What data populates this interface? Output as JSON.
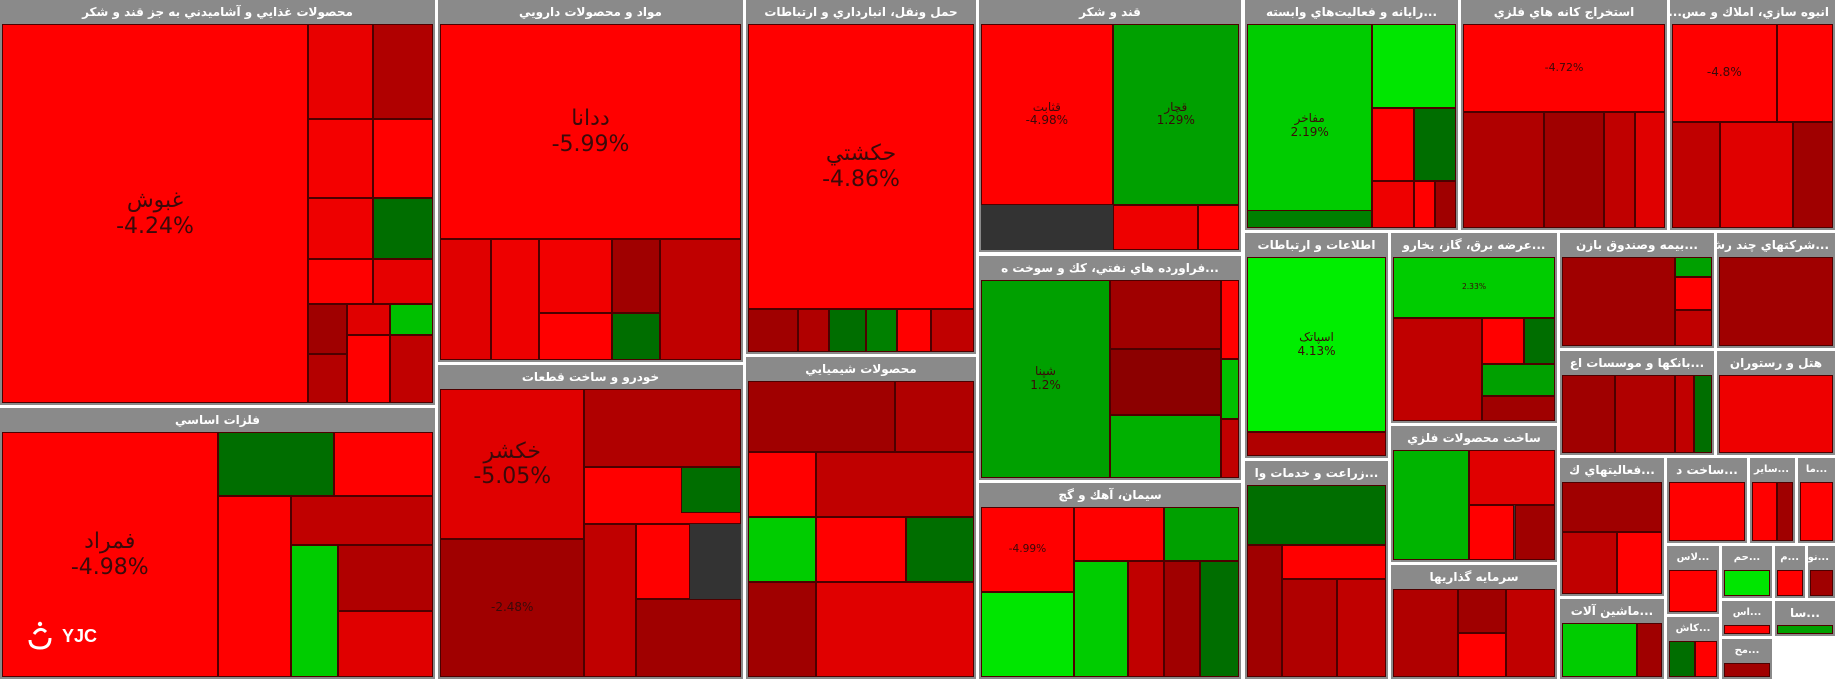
{
  "colors": {
    "strong_red": "#ff0000",
    "red": "#e00000",
    "mid_red": "#c30000",
    "dark_red": "#a00000",
    "deep_red": "#7f0000",
    "strong_green": "#00e600",
    "green": "#00b400",
    "dark_green": "#006e00",
    "header_gray": "#8a8a8a"
  },
  "logo": {
    "text": "YJC",
    "icon": "yjc-logo-mark"
  },
  "sectors": [
    {
      "id": "food",
      "title": "محصولات غذايي و آشاميدني به جز قند و شکر",
      "tiles": [
        {
          "name": "غبوش",
          "pct": "-4.24%",
          "color": "#ff0000",
          "big": true
        },
        {
          "name": "",
          "pct": "",
          "color": "#e80000"
        },
        {
          "name": "",
          "pct": "",
          "color": "#b00000"
        },
        {
          "name": "",
          "pct": "",
          "color": "#f40000"
        },
        {
          "name": "",
          "pct": "",
          "color": "#ff0000"
        },
        {
          "name": "",
          "pct": "",
          "color": "#ee0000"
        },
        {
          "name": "",
          "pct": "",
          "color": "#006e00"
        },
        {
          "name": "",
          "pct": "",
          "color": "#ff0000"
        },
        {
          "name": "",
          "pct": "",
          "color": "#e60000"
        },
        {
          "name": "",
          "pct": "",
          "color": "#a00000"
        },
        {
          "name": "",
          "pct": "",
          "color": "#e00000"
        },
        {
          "name": "",
          "pct": "",
          "color": "#00c000"
        },
        {
          "name": "",
          "pct": "",
          "color": "#b40000"
        },
        {
          "name": "",
          "pct": "",
          "color": "#ff0000"
        },
        {
          "name": "",
          "pct": "",
          "color": "#c00000"
        }
      ]
    },
    {
      "id": "pharma",
      "title": "مواد و محصولات دارويي",
      "tiles": [
        {
          "name": "ددانا",
          "pct": "-5.99%",
          "color": "#ff0000",
          "big": true
        },
        {
          "name": "",
          "pct": "",
          "color": "#e00000"
        },
        {
          "name": "",
          "pct": "",
          "color": "#ee0000"
        },
        {
          "name": "",
          "pct": "",
          "color": "#f20000"
        },
        {
          "name": "",
          "pct": "",
          "color": "#a00000"
        },
        {
          "name": "",
          "pct": "",
          "color": "#006e00"
        },
        {
          "name": "",
          "pct": "",
          "color": "#c00000"
        },
        {
          "name": "",
          "pct": "",
          "color": "#ff0000"
        }
      ]
    },
    {
      "id": "transport",
      "title": "حمل ونقل، انبارداري و ارتباطات",
      "tiles": [
        {
          "name": "حکشتي",
          "pct": "-4.86%",
          "color": "#ff0000",
          "big": true
        },
        {
          "name": "",
          "pct": "",
          "color": "#a00000"
        },
        {
          "name": "",
          "pct": "",
          "color": "#b00000"
        },
        {
          "name": "",
          "pct": "",
          "color": "#006e00"
        },
        {
          "name": "",
          "pct": "",
          "color": "#008000"
        },
        {
          "name": "",
          "pct": "",
          "color": "#ff0000"
        },
        {
          "name": "",
          "pct": "",
          "color": "#c00000"
        }
      ]
    },
    {
      "id": "sugar",
      "title": "قند و شکر",
      "tiles": [
        {
          "name": "قثابت",
          "pct": "-4.98%",
          "color": "#ff0000"
        },
        {
          "name": "قچار",
          "pct": "1.29%",
          "color": "#00a000"
        },
        {
          "name": "",
          "pct": "",
          "color": "#ee0000"
        },
        {
          "name": "",
          "pct": "",
          "color": "#ff0000"
        }
      ]
    },
    {
      "id": "computer",
      "title": "...رايانه و فعاليت‌هاي وابسته",
      "tiles": [
        {
          "name": "مفاخر",
          "pct": "2.19%",
          "color": "#00cc00"
        },
        {
          "name": "",
          "pct": "",
          "color": "#00e600"
        },
        {
          "name": "",
          "pct": "",
          "color": "#ff0000"
        },
        {
          "name": "",
          "pct": "",
          "color": "#006e00"
        },
        {
          "name": "",
          "pct": "",
          "color": "#ee0000"
        },
        {
          "name": "",
          "pct": "",
          "color": "#ff0000"
        },
        {
          "name": "",
          "pct": "",
          "color": "#a00000"
        },
        {
          "name": "",
          "pct": "",
          "color": "#008000"
        }
      ]
    },
    {
      "id": "metal-ore",
      "title": "استخراج کانه هاي فلزي",
      "tiles": [
        {
          "name": "",
          "pct": "-4.72%",
          "color": "#ff0000"
        },
        {
          "name": "",
          "pct": "",
          "color": "#b00000"
        },
        {
          "name": "",
          "pct": "",
          "color": "#a00000"
        },
        {
          "name": "",
          "pct": "",
          "color": "#c00000"
        },
        {
          "name": "",
          "pct": "",
          "color": "#e00000"
        }
      ]
    },
    {
      "id": "housing",
      "title": "انبوه سازي، املاك و مس...",
      "tiles": [
        {
          "name": "",
          "pct": "-4.8%",
          "color": "#ff0000"
        },
        {
          "name": "",
          "pct": "",
          "color": "#ff0000"
        },
        {
          "name": "",
          "pct": "",
          "color": "#c00000"
        },
        {
          "name": "",
          "pct": "",
          "color": "#e00000"
        },
        {
          "name": "",
          "pct": "",
          "color": "#a00000"
        }
      ]
    },
    {
      "id": "petroleum",
      "title": "...فراورده هاي نفتي، کك و سوخت ه",
      "tiles": [
        {
          "name": "شپنا",
          "pct": "1.2%",
          "color": "#00a000"
        },
        {
          "name": "",
          "pct": "",
          "color": "#a00000"
        },
        {
          "name": "",
          "pct": "",
          "color": "#8c0000"
        },
        {
          "name": "",
          "pct": "",
          "color": "#00b000"
        },
        {
          "name": "",
          "pct": "",
          "color": "#ff0000"
        },
        {
          "name": "",
          "pct": "",
          "color": "#00c000"
        },
        {
          "name": "",
          "pct": "",
          "color": "#c00000"
        }
      ]
    },
    {
      "id": "ict",
      "title": "اطلاعات و ارتباطات",
      "tiles": [
        {
          "name": "اسپاتک",
          "pct": "4.13%",
          "color": "#00ee00"
        },
        {
          "name": "",
          "pct": "",
          "color": "#b00000"
        }
      ]
    },
    {
      "id": "power",
      "title": "...عرضه برق، گاز، بخارو",
      "tiles": [
        {
          "name": "",
          "pct": "2.33%",
          "color": "#00cc00"
        },
        {
          "name": "",
          "pct": "",
          "color": "#c00000"
        },
        {
          "name": "",
          "pct": "",
          "color": "#ff0000"
        },
        {
          "name": "",
          "pct": "",
          "color": "#006e00"
        },
        {
          "name": "",
          "pct": "",
          "color": "#00a000"
        },
        {
          "name": "",
          "pct": "",
          "color": "#a00000"
        }
      ]
    },
    {
      "id": "insurance",
      "title": "...بيمه وصندوق بازن",
      "tiles": [
        {
          "name": "",
          "pct": "",
          "color": "#a00000"
        },
        {
          "name": "",
          "pct": "",
          "color": "#00a000"
        },
        {
          "name": "",
          "pct": "",
          "color": "#ff0000"
        },
        {
          "name": "",
          "pct": "",
          "color": "#c00000"
        }
      ]
    },
    {
      "id": "multi",
      "title": "...شرکتهاي چند رش",
      "tiles": [
        {
          "name": "",
          "pct": "",
          "color": "#a00000"
        }
      ]
    },
    {
      "id": "banks",
      "title": "...بانکها و موسسات اع",
      "tiles": [
        {
          "name": "",
          "pct": "",
          "color": "#a00000"
        },
        {
          "name": "",
          "pct": "",
          "color": "#b00000"
        },
        {
          "name": "",
          "pct": "",
          "color": "#c00000"
        },
        {
          "name": "",
          "pct": "",
          "color": "#006e00"
        }
      ]
    },
    {
      "id": "hotel",
      "title": "هتل و رستوران",
      "tiles": [
        {
          "name": "",
          "pct": "",
          "color": "#ee0000"
        }
      ]
    },
    {
      "id": "metals",
      "title": "فلزات اساسي",
      "tiles": [
        {
          "name": "فمراد",
          "pct": "-4.98%",
          "color": "#ff0000",
          "big": true
        },
        {
          "name": "",
          "pct": "",
          "color": "#006e00"
        },
        {
          "name": "",
          "pct": "",
          "color": "#ff0000"
        },
        {
          "name": "",
          "pct": "",
          "color": "#a00000"
        },
        {
          "name": "",
          "pct": "",
          "color": "#c00000"
        },
        {
          "name": "",
          "pct": "",
          "color": "#ff0000"
        },
        {
          "name": "",
          "pct": "",
          "color": "#00a000"
        },
        {
          "name": "",
          "pct": "",
          "color": "#00cc00"
        },
        {
          "name": "",
          "pct": "",
          "color": "#b00000"
        },
        {
          "name": "",
          "pct": "",
          "color": "#e00000"
        }
      ]
    },
    {
      "id": "auto",
      "title": "خودرو و ساخت قطعات",
      "tiles": [
        {
          "name": "خکشر",
          "pct": "-5.05%",
          "color": "#e00000",
          "big": true
        },
        {
          "name": "",
          "pct": "",
          "color": "#b00000"
        },
        {
          "name": "",
          "pct": "-2.48%",
          "color": "#a00000"
        },
        {
          "name": "",
          "pct": "",
          "color": "#ff0000"
        },
        {
          "name": "",
          "pct": "",
          "color": "#006e00"
        },
        {
          "name": "",
          "pct": "",
          "color": "#c00000"
        },
        {
          "name": "",
          "pct": "",
          "color": "#ff0000"
        },
        {
          "name": "",
          "pct": "",
          "color": "#a00000"
        }
      ]
    },
    {
      "id": "chemicals",
      "title": "محصولات شيميايي",
      "tiles": [
        {
          "name": "",
          "pct": "",
          "color": "#a00000"
        },
        {
          "name": "",
          "pct": "",
          "color": "#b00000"
        },
        {
          "name": "",
          "pct": "",
          "color": "#ff0000"
        },
        {
          "name": "",
          "pct": "",
          "color": "#c00000"
        },
        {
          "name": "",
          "pct": "",
          "color": "#00cc00"
        },
        {
          "name": "",
          "pct": "",
          "color": "#ff0000"
        },
        {
          "name": "",
          "pct": "",
          "color": "#006e00"
        },
        {
          "name": "",
          "pct": "",
          "color": "#a00000"
        },
        {
          "name": "",
          "pct": "",
          "color": "#e00000"
        }
      ]
    },
    {
      "id": "cement",
      "title": "سيمان، آهك و گچ",
      "tiles": [
        {
          "name": "",
          "pct": "-4.99%",
          "color": "#ff0000"
        },
        {
          "name": "",
          "pct": "",
          "color": "#ff0000"
        },
        {
          "name": "",
          "pct": "",
          "color": "#00a000"
        },
        {
          "name": "",
          "pct": "",
          "color": "#00e600"
        },
        {
          "name": "",
          "pct": "",
          "color": "#00cc00"
        },
        {
          "name": "",
          "pct": "",
          "color": "#c00000"
        },
        {
          "name": "",
          "pct": "",
          "color": "#a00000"
        },
        {
          "name": "",
          "pct": "",
          "color": "#006e00"
        }
      ]
    },
    {
      "id": "agri",
      "title": "...زراعت و خدمات وا",
      "tiles": [
        {
          "name": "",
          "pct": "",
          "color": "#006e00"
        },
        {
          "name": "",
          "pct": "",
          "color": "#ff0000"
        },
        {
          "name": "",
          "pct": "",
          "color": "#a00000"
        },
        {
          "name": "",
          "pct": "",
          "color": "#b00000"
        },
        {
          "name": "",
          "pct": "",
          "color": "#c00000"
        }
      ]
    },
    {
      "id": "fabricated",
      "title": "ساخت محصولات فلزي",
      "tiles": [
        {
          "name": "",
          "pct": "",
          "color": "#00b400"
        },
        {
          "name": "",
          "pct": "",
          "color": "#e00000"
        },
        {
          "name": "",
          "pct": "",
          "color": "#ff0000"
        },
        {
          "name": "",
          "pct": "",
          "color": "#a00000"
        }
      ]
    },
    {
      "id": "investment",
      "title": "سرمايه گذاريها",
      "tiles": [
        {
          "name": "",
          "pct": "",
          "color": "#b00000"
        },
        {
          "name": "",
          "pct": "",
          "color": "#a00000"
        },
        {
          "name": "",
          "pct": "",
          "color": "#c00000"
        },
        {
          "name": "",
          "pct": "",
          "color": "#ff0000"
        }
      ]
    },
    {
      "id": "activities",
      "title": "...فعاليتهاي ك",
      "tiles": [
        {
          "name": "",
          "pct": "",
          "color": "#a00000"
        },
        {
          "name": "",
          "pct": "",
          "color": "#c00000"
        },
        {
          "name": "",
          "pct": "",
          "color": "#ff0000"
        }
      ]
    },
    {
      "id": "sakht",
      "title": "...ساخت د",
      "tiles": [
        {
          "name": "",
          "pct": "",
          "color": "#ff0000"
        }
      ]
    },
    {
      "id": "sayer",
      "title": "...ساير",
      "tiles": [
        {
          "name": "",
          "pct": "",
          "color": "#ff0000"
        },
        {
          "name": "",
          "pct": "",
          "color": "#a00000"
        }
      ]
    },
    {
      "id": "ma",
      "title": "...ما",
      "tiles": [
        {
          "name": "",
          "pct": "",
          "color": "#ff0000"
        }
      ]
    },
    {
      "id": "machinery",
      "title": "...ماشين آلات",
      "tiles": [
        {
          "name": "",
          "pct": "",
          "color": "#00cc00"
        },
        {
          "name": "",
          "pct": "",
          "color": "#a00000"
        }
      ]
    },
    {
      "id": "las",
      "title": "...لاس",
      "tiles": [
        {
          "name": "",
          "pct": "",
          "color": "#ff0000"
        }
      ]
    },
    {
      "id": "ham",
      "title": "...حم",
      "tiles": [
        {
          "name": "",
          "pct": "",
          "color": "#00e600"
        }
      ]
    },
    {
      "id": "m",
      "title": "...م",
      "tiles": [
        {
          "name": "",
          "pct": "",
          "color": "#ff0000"
        }
      ]
    },
    {
      "id": "no",
      "title": "...نو",
      "tiles": [
        {
          "name": "",
          "pct": "",
          "color": "#a00000"
        }
      ]
    },
    {
      "id": "as",
      "title": "...اس",
      "tiles": [
        {
          "name": "",
          "pct": "",
          "color": "#ff0000"
        }
      ]
    },
    {
      "id": "sa",
      "title": "...سا",
      "tiles": [
        {
          "name": "",
          "pct": "",
          "color": "#00a000"
        }
      ]
    },
    {
      "id": "kash",
      "title": "...کاش",
      "tiles": [
        {
          "name": "",
          "pct": "",
          "color": "#006e00"
        },
        {
          "name": "",
          "pct": "",
          "color": "#ff0000"
        }
      ]
    },
    {
      "id": "mah",
      "title": "...مح",
      "tiles": [
        {
          "name": "",
          "pct": "",
          "color": "#a00000"
        }
      ]
    }
  ]
}
